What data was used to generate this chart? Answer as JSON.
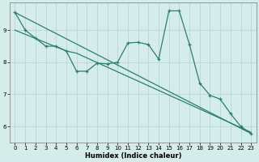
{
  "bg_color": "#d4edea",
  "line_color": "#2e7d72",
  "grid_color": "#b8d8d4",
  "xlabel": "Humidex (Indice chaleur)",
  "xlim": [
    -0.5,
    23.5
  ],
  "ylim": [
    5.5,
    9.85
  ],
  "yticks": [
    6,
    7,
    8,
    9
  ],
  "xticks": [
    0,
    1,
    2,
    3,
    4,
    5,
    6,
    7,
    8,
    9,
    10,
    11,
    12,
    13,
    14,
    15,
    16,
    17,
    18,
    19,
    20,
    21,
    22,
    23
  ],
  "zigzag_x": [
    0,
    1,
    2,
    3,
    4,
    5,
    6,
    7,
    8,
    9,
    10,
    11,
    12,
    13,
    14,
    15,
    16,
    17,
    18,
    19,
    20,
    21,
    22,
    23
  ],
  "zigzag_y": [
    9.55,
    9.0,
    8.75,
    8.5,
    8.5,
    8.35,
    7.72,
    7.72,
    7.97,
    7.95,
    8.0,
    8.6,
    8.62,
    8.55,
    8.1,
    9.6,
    9.6,
    8.55,
    7.35,
    6.97,
    6.85,
    6.4,
    6.0,
    5.78
  ],
  "trend1_x": [
    0,
    23
  ],
  "trend1_y": [
    9.55,
    5.78
  ],
  "trend2_x": [
    0,
    5,
    6,
    23
  ],
  "trend2_y": [
    9.0,
    8.35,
    8.28,
    5.82
  ]
}
